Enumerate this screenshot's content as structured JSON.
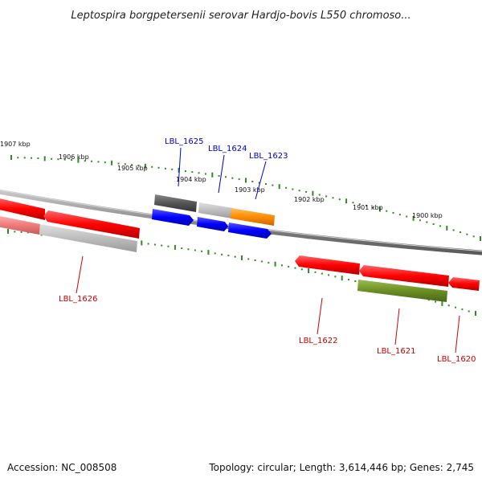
{
  "title": "Leptospira borgpetersenii serovar Hardjo-bovis L550 chromoso...",
  "footer": {
    "accession": "Accession: NC_008508",
    "summary": "Topology: circular; Length: 3,614,446 bp; Genes: 2,745"
  },
  "scale_labels": [
    "1907 kbp",
    "1906 kbp",
    "1905 kbp",
    "1904 kbp",
    "1903 kbp",
    "1902 kbp",
    "1901 kbp",
    "1900 kbp"
  ],
  "gene_labels": {
    "forward": [
      "LBL_1625",
      "LBL_1624",
      "LBL_1623"
    ],
    "reverse": [
      "LBL_1626",
      "LBL_1622",
      "LBL_1621",
      "LBL_1620"
    ]
  },
  "colors": {
    "forward_label": "#0000cc",
    "reverse_label": "#cc0000",
    "tick": "#2e8b22",
    "backbone": "#808080",
    "red_feature": "#ff0000",
    "blue_feature": "#0000ff",
    "orange_feature": "#ff8c00",
    "green_feature": "#6b8e23",
    "gray_feature": "#bbbbbb",
    "dark_feature": "#555555"
  }
}
